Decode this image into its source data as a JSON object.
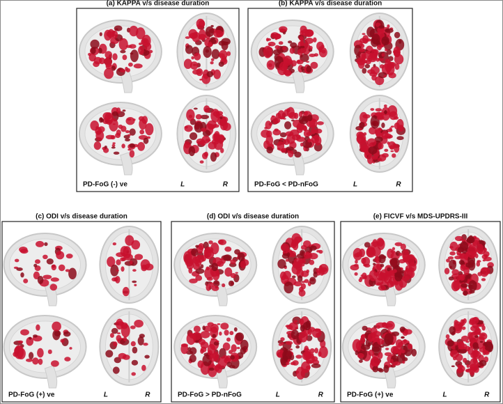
{
  "panels": [
    {
      "title": "(a) KAPPA v/s disease duration",
      "caption": "PD-FoG (-) ve",
      "left": "L",
      "right": "R"
    },
    {
      "title": "(b) KAPPA v/s disease duration",
      "caption": "PD-FoG < PD-nFoG",
      "left": "L",
      "right": "R"
    },
    {
      "title": "(c) ODI v/s disease duration",
      "caption": "PD-FoG (+) ve",
      "left": "L",
      "right": "R"
    },
    {
      "title": "(d) ODI v/s disease duration",
      "caption": "PD-FoG > PD-nFoG",
      "left": "L",
      "right": "R"
    },
    {
      "title": "(e) FICVF v/s MDS-UPDRS-III",
      "caption": "PD-FoG (+) ve",
      "left": "L",
      "right": "R"
    }
  ]
}
